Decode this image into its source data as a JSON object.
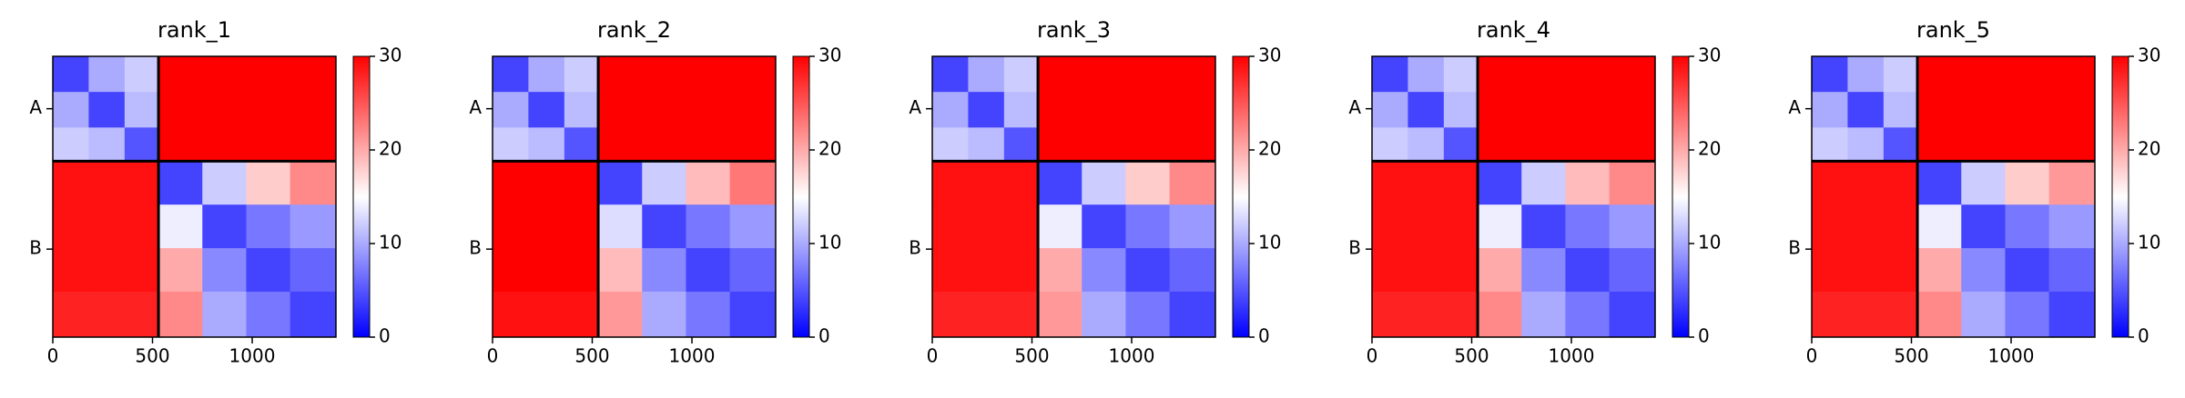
{
  "chart_data": [
    {
      "type": "heatmap",
      "title": "rank_1",
      "cmap": "bwr",
      "clim": [
        0,
        30
      ],
      "cticks": [
        0,
        10,
        20,
        30
      ],
      "xlim": [
        0,
        1420
      ],
      "ylim": [
        1420,
        0
      ],
      "xticks": [
        0,
        500,
        1000
      ],
      "yticks": [
        {
          "value": 265,
          "label": "A"
        },
        {
          "value": 975,
          "label": "B"
        }
      ],
      "chain_boundaries": [
        530
      ],
      "x_edges": [
        0,
        180,
        360,
        530,
        750,
        970,
        1190,
        1420
      ],
      "y_edges": [
        0,
        180,
        360,
        530,
        750,
        970,
        1190,
        1420
      ],
      "values": [
        [
          4,
          10,
          12,
          30,
          30,
          30,
          30
        ],
        [
          10,
          4,
          11,
          30,
          30,
          30,
          30
        ],
        [
          12,
          11,
          5,
          30,
          30,
          30,
          30
        ],
        [
          29,
          29,
          29,
          4,
          12,
          18,
          22
        ],
        [
          29,
          29,
          29,
          14,
          4,
          7,
          9
        ],
        [
          29,
          29,
          29,
          20,
          8,
          4,
          6
        ],
        [
          28,
          28,
          28,
          22,
          10,
          7,
          4
        ]
      ]
    },
    {
      "type": "heatmap",
      "title": "rank_2",
      "cmap": "bwr",
      "clim": [
        0,
        30
      ],
      "cticks": [
        0,
        10,
        20,
        30
      ],
      "xlim": [
        0,
        1420
      ],
      "ylim": [
        1420,
        0
      ],
      "xticks": [
        0,
        500,
        1000
      ],
      "yticks": [
        {
          "value": 265,
          "label": "A"
        },
        {
          "value": 975,
          "label": "B"
        }
      ],
      "chain_boundaries": [
        530
      ],
      "x_edges": [
        0,
        180,
        360,
        530,
        750,
        970,
        1190,
        1420
      ],
      "y_edges": [
        0,
        180,
        360,
        530,
        750,
        970,
        1190,
        1420
      ],
      "values": [
        [
          4,
          10,
          12,
          30,
          30,
          30,
          30
        ],
        [
          10,
          4,
          11,
          30,
          30,
          30,
          30
        ],
        [
          12,
          11,
          5,
          30,
          30,
          30,
          30
        ],
        [
          30,
          30,
          30,
          4,
          12,
          19,
          23
        ],
        [
          30,
          30,
          30,
          13,
          4,
          7,
          9
        ],
        [
          30,
          30,
          30,
          19,
          8,
          4,
          6
        ],
        [
          29,
          29,
          29,
          21,
          10,
          7,
          4
        ]
      ]
    },
    {
      "type": "heatmap",
      "title": "rank_3",
      "cmap": "bwr",
      "clim": [
        0,
        30
      ],
      "cticks": [
        0,
        10,
        20,
        30
      ],
      "xlim": [
        0,
        1420
      ],
      "ylim": [
        1420,
        0
      ],
      "xticks": [
        0,
        500,
        1000
      ],
      "yticks": [
        {
          "value": 265,
          "label": "A"
        },
        {
          "value": 975,
          "label": "B"
        }
      ],
      "chain_boundaries": [
        530
      ],
      "x_edges": [
        0,
        180,
        360,
        530,
        750,
        970,
        1190,
        1420
      ],
      "y_edges": [
        0,
        180,
        360,
        530,
        750,
        970,
        1190,
        1420
      ],
      "values": [
        [
          4,
          10,
          12,
          30,
          30,
          30,
          30
        ],
        [
          10,
          4,
          11,
          30,
          30,
          30,
          30
        ],
        [
          12,
          11,
          5,
          30,
          30,
          30,
          30
        ],
        [
          29,
          29,
          29,
          4,
          12,
          18,
          22
        ],
        [
          29,
          29,
          29,
          14,
          4,
          7,
          9
        ],
        [
          29,
          29,
          29,
          20,
          8,
          4,
          6
        ],
        [
          28,
          28,
          28,
          21,
          10,
          7,
          4
        ]
      ]
    },
    {
      "type": "heatmap",
      "title": "rank_4",
      "cmap": "bwr",
      "clim": [
        0,
        30
      ],
      "cticks": [
        0,
        10,
        20,
        30
      ],
      "xlim": [
        0,
        1420
      ],
      "ylim": [
        1420,
        0
      ],
      "xticks": [
        0,
        500,
        1000
      ],
      "yticks": [
        {
          "value": 265,
          "label": "A"
        },
        {
          "value": 975,
          "label": "B"
        }
      ],
      "chain_boundaries": [
        530
      ],
      "x_edges": [
        0,
        180,
        360,
        530,
        750,
        970,
        1190,
        1420
      ],
      "y_edges": [
        0,
        180,
        360,
        530,
        750,
        970,
        1190,
        1420
      ],
      "values": [
        [
          4,
          10,
          12,
          30,
          30,
          30,
          30
        ],
        [
          10,
          4,
          11,
          30,
          30,
          30,
          30
        ],
        [
          12,
          11,
          5,
          30,
          30,
          30,
          30
        ],
        [
          29,
          29,
          29,
          4,
          12,
          19,
          22
        ],
        [
          29,
          29,
          29,
          14,
          4,
          7,
          9
        ],
        [
          29,
          29,
          29,
          20,
          8,
          4,
          6
        ],
        [
          28,
          28,
          28,
          22,
          10,
          7,
          4
        ]
      ]
    },
    {
      "type": "heatmap",
      "title": "rank_5",
      "cmap": "bwr",
      "clim": [
        0,
        30
      ],
      "cticks": [
        0,
        10,
        20,
        30
      ],
      "xlim": [
        0,
        1420
      ],
      "ylim": [
        1420,
        0
      ],
      "xticks": [
        0,
        500,
        1000
      ],
      "yticks": [
        {
          "value": 265,
          "label": "A"
        },
        {
          "value": 975,
          "label": "B"
        }
      ],
      "chain_boundaries": [
        530
      ],
      "x_edges": [
        0,
        180,
        360,
        530,
        750,
        970,
        1190,
        1420
      ],
      "y_edges": [
        0,
        180,
        360,
        530,
        750,
        970,
        1190,
        1420
      ],
      "values": [
        [
          4,
          10,
          12,
          30,
          30,
          30,
          30
        ],
        [
          10,
          4,
          11,
          30,
          30,
          30,
          30
        ],
        [
          12,
          11,
          5,
          30,
          30,
          30,
          30
        ],
        [
          29,
          29,
          29,
          4,
          12,
          18,
          21
        ],
        [
          29,
          29,
          29,
          14,
          4,
          7,
          9
        ],
        [
          29,
          29,
          29,
          20,
          8,
          4,
          6
        ],
        [
          28,
          28,
          28,
          22,
          10,
          7,
          4
        ]
      ]
    }
  ]
}
